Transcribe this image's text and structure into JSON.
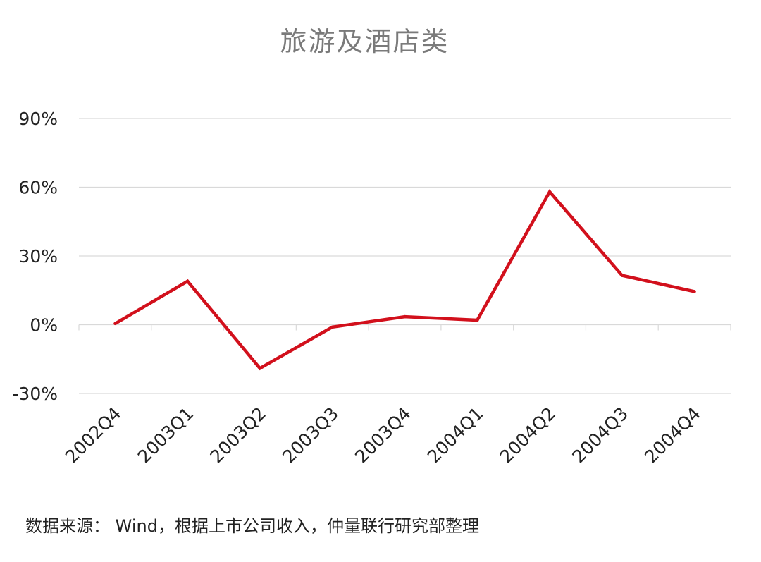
{
  "chart_data": {
    "type": "line",
    "title": "旅游及酒店类",
    "xlabel": "",
    "ylabel": "",
    "categories": [
      "2002Q4",
      "2003Q1",
      "2003Q2",
      "2003Q3",
      "2003Q4",
      "2004Q1",
      "2004Q2",
      "2004Q3",
      "2004Q4"
    ],
    "series": [
      {
        "values": [
          0.5,
          19,
          -19,
          -1,
          3.5,
          2,
          58,
          21.5,
          14.5
        ],
        "color": "#d2101c"
      }
    ],
    "yticks": [
      {
        "value": -30,
        "label": "-30%"
      },
      {
        "value": 0,
        "label": "0%"
      },
      {
        "value": 30,
        "label": "30%"
      },
      {
        "value": 60,
        "label": "60%"
      },
      {
        "value": 90,
        "label": "90%"
      }
    ],
    "ylim": [
      -30,
      90
    ],
    "grid": true,
    "legend": "none"
  },
  "source_note": "数据来源： Wind，根据上市公司收入，仲量联行研究部整理",
  "colors": {
    "line": "#d2101c",
    "grid": "#d9d9d9",
    "title": "#7a7a7a"
  }
}
